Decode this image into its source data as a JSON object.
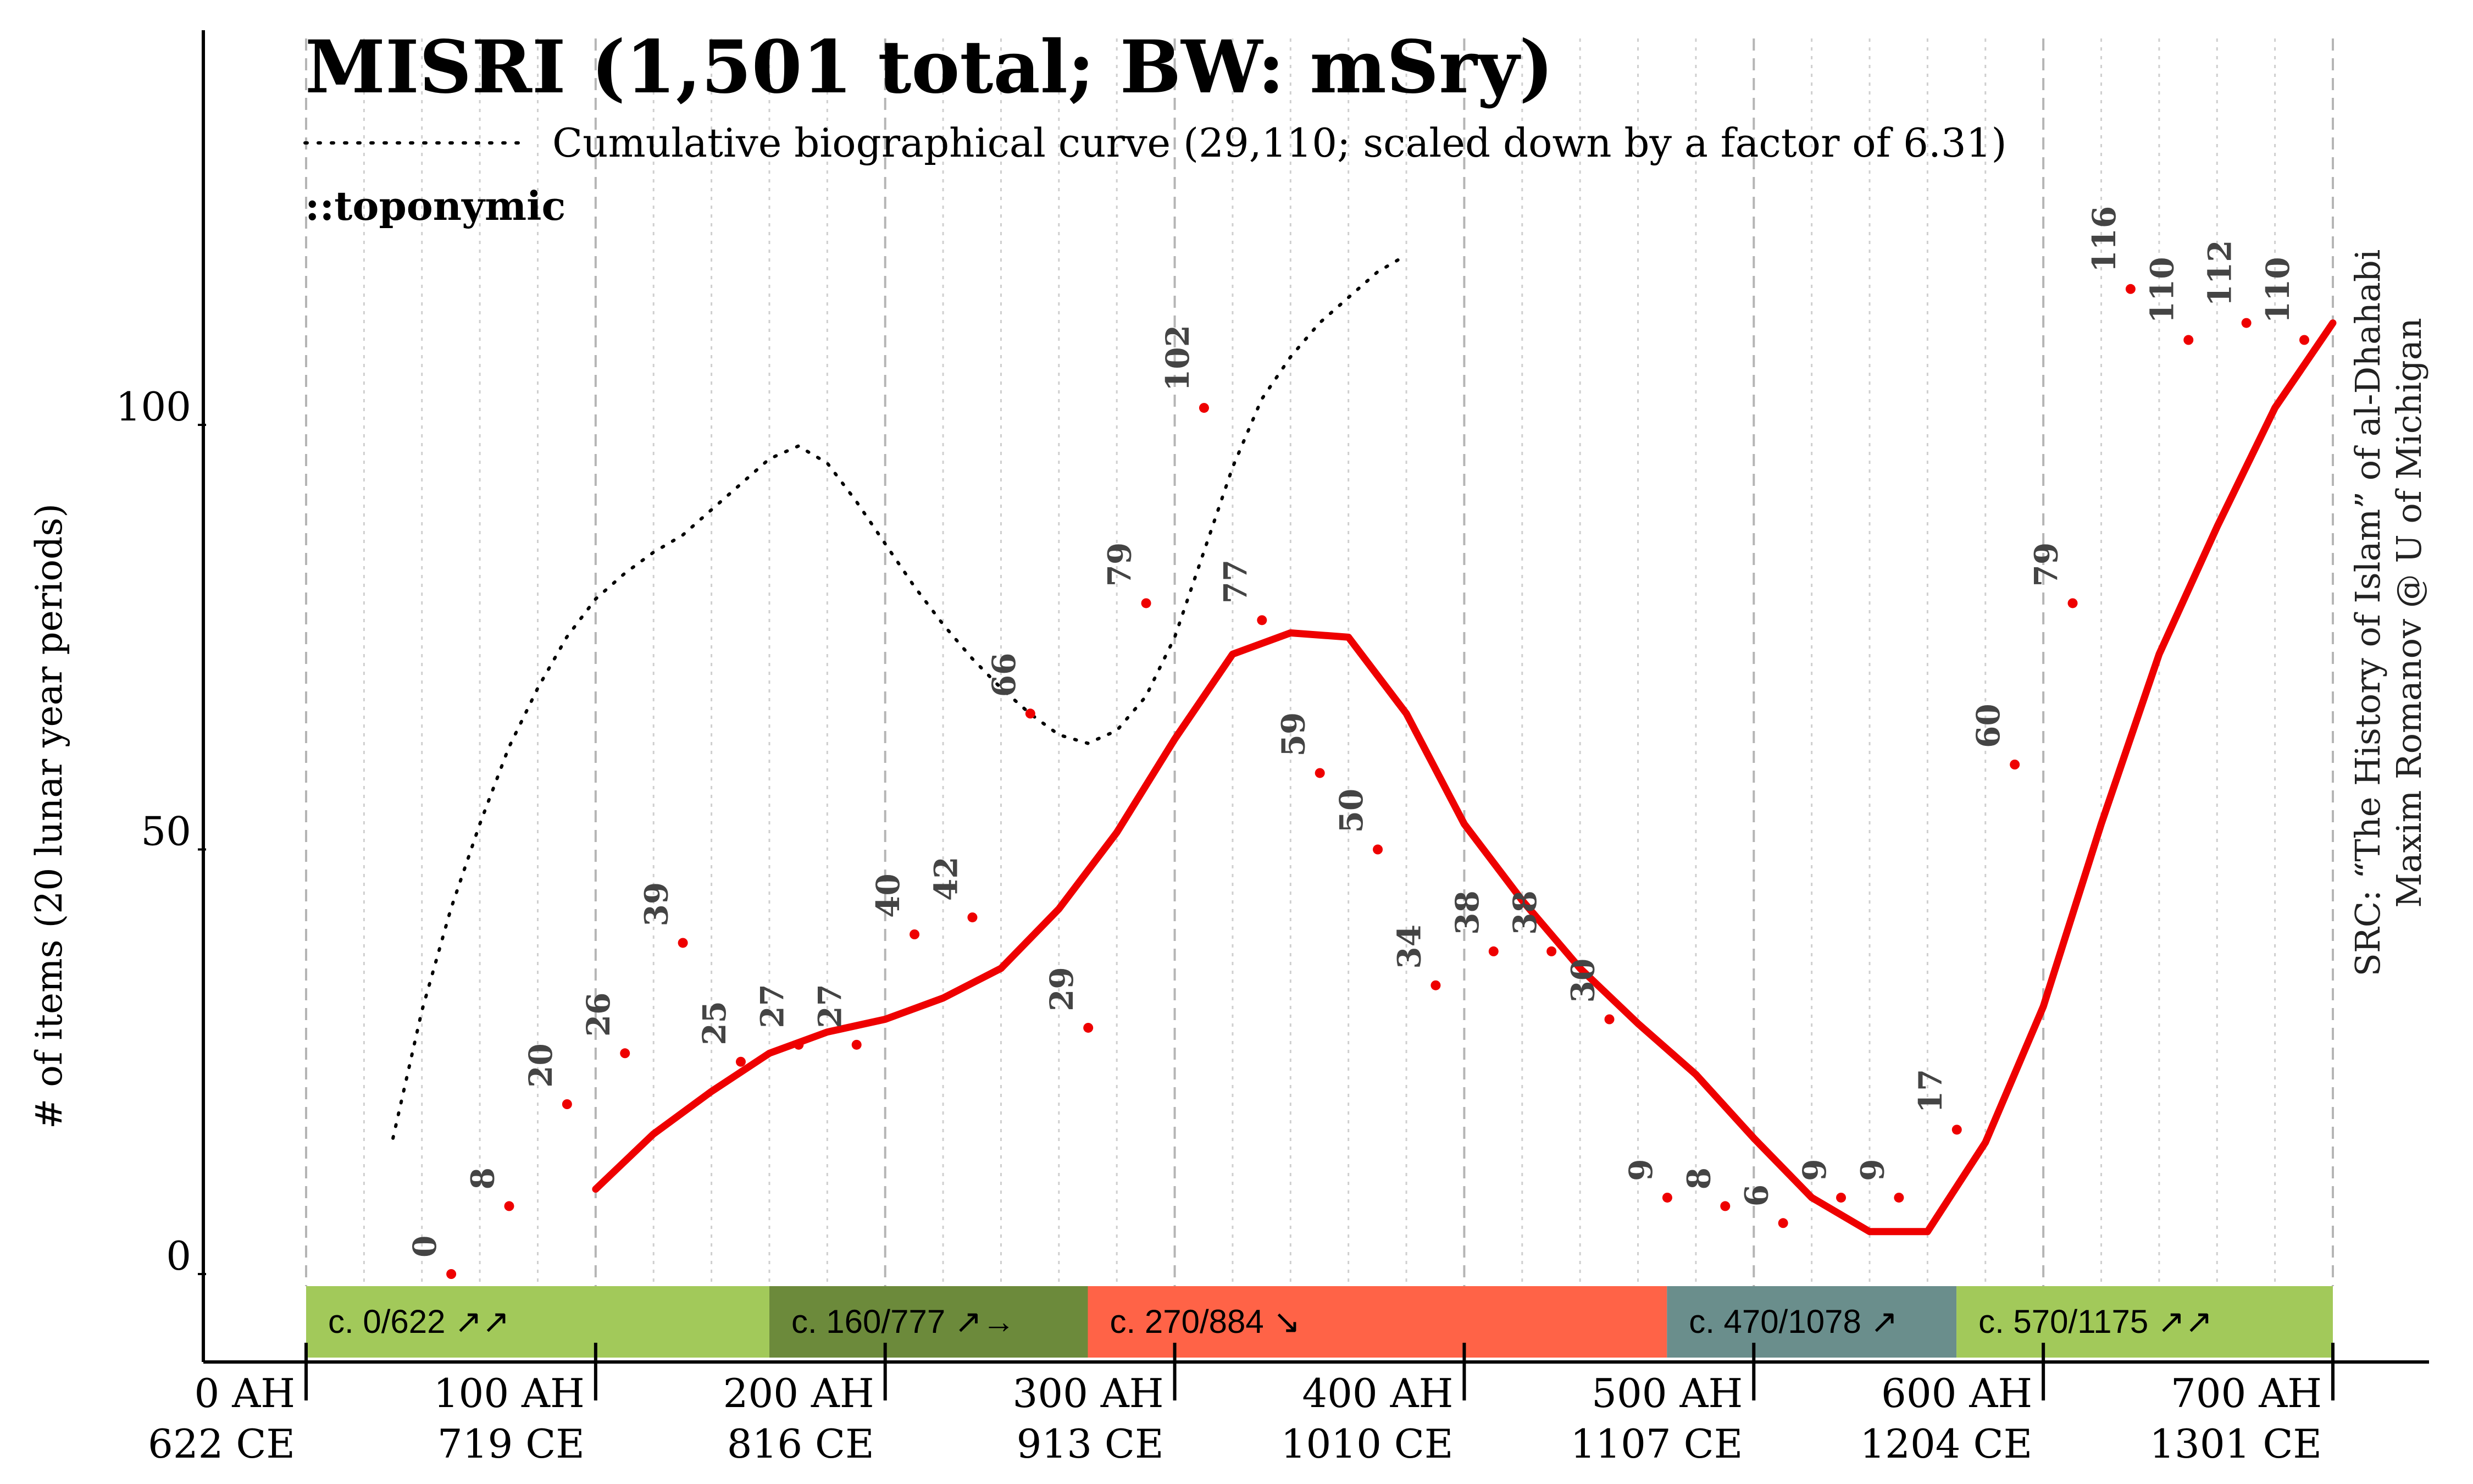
{
  "chart_data": {
    "type": "line",
    "title": "MISRI (1,501 total; BW: mSry)",
    "legend_entry": "Cumulative biographical curve (29,110; scaled down by a factor of 6.31)",
    "subtitle": "::toponymic",
    "ylabel": "# of items (20 lunar year periods)",
    "ylim": [
      -5,
      140
    ],
    "yticks": [
      0,
      50,
      100
    ],
    "xlim": [
      0,
      700
    ],
    "x_ticks": [
      {
        "x": 0,
        "ah": "0 AH",
        "ce": "622 CE"
      },
      {
        "x": 100,
        "ah": "100 AH",
        "ce": "719 CE"
      },
      {
        "x": 200,
        "ah": "200 AH",
        "ce": "816 CE"
      },
      {
        "x": 300,
        "ah": "300 AH",
        "ce": "913 CE"
      },
      {
        "x": 400,
        "ah": "400 AH",
        "ce": "1010 CE"
      },
      {
        "x": 500,
        "ah": "500 AH",
        "ce": "1107 CE"
      },
      {
        "x": 600,
        "ah": "600 AH",
        "ce": "1204 CE"
      },
      {
        "x": 700,
        "ah": "700 AH",
        "ce": "1301 CE"
      }
    ],
    "grid": "vertical dashed every 20 AH",
    "points": [
      {
        "x": 60,
        "y": 0,
        "label": "0"
      },
      {
        "x": 80,
        "y": 8,
        "label": "8"
      },
      {
        "x": 100,
        "y": 20,
        "label": "20"
      },
      {
        "x": 120,
        "y": 26,
        "label": "26"
      },
      {
        "x": 140,
        "y": 39,
        "label": "39"
      },
      {
        "x": 160,
        "y": 25,
        "label": "25"
      },
      {
        "x": 180,
        "y": 27,
        "label": "27"
      },
      {
        "x": 200,
        "y": 27,
        "label": "27"
      },
      {
        "x": 220,
        "y": 40,
        "label": "40"
      },
      {
        "x": 240,
        "y": 42,
        "label": "42"
      },
      {
        "x": 260,
        "y": 66,
        "label": "66"
      },
      {
        "x": 280,
        "y": 29,
        "label": "29"
      },
      {
        "x": 300,
        "y": 79,
        "label": "79"
      },
      {
        "x": 320,
        "y": 102,
        "label": "102"
      },
      {
        "x": 340,
        "y": 77,
        "label": "77"
      },
      {
        "x": 360,
        "y": 59,
        "label": "59"
      },
      {
        "x": 380,
        "y": 50,
        "label": "50"
      },
      {
        "x": 400,
        "y": 34,
        "label": "34"
      },
      {
        "x": 420,
        "y": 38,
        "label": "38"
      },
      {
        "x": 440,
        "y": 38,
        "label": "38"
      },
      {
        "x": 460,
        "y": 30,
        "label": "30"
      },
      {
        "x": 480,
        "y": 9,
        "label": "9"
      },
      {
        "x": 500,
        "y": 8,
        "label": "8"
      },
      {
        "x": 520,
        "y": 6,
        "label": "6"
      },
      {
        "x": 540,
        "y": 9,
        "label": "9"
      },
      {
        "x": 560,
        "y": 9,
        "label": "9"
      },
      {
        "x": 580,
        "y": 17,
        "label": "17"
      },
      {
        "x": 600,
        "y": 60,
        "label": "60"
      },
      {
        "x": 620,
        "y": 79,
        "label": "79"
      },
      {
        "x": 640,
        "y": 116,
        "label": "116"
      },
      {
        "x": 660,
        "y": 110,
        "label": "110"
      },
      {
        "x": 680,
        "y": 112,
        "label": "112"
      },
      {
        "x": 700,
        "y": 110,
        "label": "110"
      }
    ],
    "series": [
      {
        "style": "smoothed solid red",
        "points": [
          [
            50,
            10
          ],
          [
            60,
            16.5
          ],
          [
            70,
            21.5
          ],
          [
            80,
            26
          ],
          [
            90,
            28.5
          ],
          [
            100,
            30
          ],
          [
            110,
            32.5
          ],
          [
            120,
            36
          ],
          [
            130,
            43
          ],
          [
            140,
            52
          ],
          [
            150,
            63
          ],
          [
            160,
            73
          ],
          [
            170,
            75.5
          ],
          [
            180,
            75
          ],
          [
            190,
            66
          ],
          [
            200,
            53
          ],
          [
            210,
            44
          ],
          [
            220,
            36
          ],
          [
            230,
            29.5
          ],
          [
            240,
            23.5
          ],
          [
            250,
            16
          ],
          [
            260,
            9
          ],
          [
            270,
            5
          ],
          [
            280,
            5
          ],
          [
            290,
            15.5
          ],
          [
            300,
            31.5
          ],
          [
            310,
            53
          ],
          [
            320,
            73
          ],
          [
            330,
            88
          ],
          [
            340,
            102
          ],
          [
            350,
            112
          ]
        ]
      },
      {
        "style": "dotted black",
        "points": [
          [
            30,
            16
          ],
          [
            40,
            31
          ],
          [
            50,
            43
          ],
          [
            60,
            53
          ],
          [
            70,
            62
          ],
          [
            80,
            69
          ],
          [
            90,
            75
          ],
          [
            100,
            79.5
          ],
          [
            110,
            82.5
          ],
          [
            120,
            85
          ],
          [
            130,
            87
          ],
          [
            140,
            90
          ],
          [
            150,
            93
          ],
          [
            160,
            96
          ],
          [
            170,
            97.5
          ],
          [
            180,
            95.5
          ],
          [
            190,
            91
          ],
          [
            200,
            86
          ],
          [
            210,
            81
          ],
          [
            220,
            76.5
          ],
          [
            230,
            72.5
          ],
          [
            240,
            69
          ],
          [
            250,
            66
          ],
          [
            260,
            63.5
          ],
          [
            270,
            62.5
          ],
          [
            280,
            64
          ],
          [
            290,
            68
          ],
          [
            300,
            75
          ],
          [
            310,
            85
          ],
          [
            320,
            95
          ],
          [
            330,
            103
          ],
          [
            340,
            108
          ],
          [
            350,
            112
          ],
          [
            360,
            115
          ],
          [
            370,
            118
          ],
          [
            380,
            120
          ]
        ]
      }
    ],
    "periods": [
      {
        "start": 0,
        "end": 160,
        "label": "c. 0/622 ↗↗",
        "color": "#a2c95a"
      },
      {
        "start": 160,
        "end": 270,
        "label": "c. 160/777 ↗→",
        "color": "#6c8a3b"
      },
      {
        "start": 270,
        "end": 470,
        "label": "c. 270/884 ↘",
        "color": "#ff6347"
      },
      {
        "start": 470,
        "end": 570,
        "label": "c. 470/1078 ↗",
        "color": "#6a8e8c"
      },
      {
        "start": 570,
        "end": 700,
        "label": "c. 570/1175 ↗↗",
        "color": "#a2c95a"
      }
    ],
    "source_line1": "SRC: “The History of Islam” of al-Dhahabi",
    "source_line2": "Maxim Romanov @ U of Michigan",
    "colors": {
      "line": "#ee0000",
      "points": "#ee0000",
      "cumulative": "#000000",
      "labels": "#444444"
    }
  }
}
